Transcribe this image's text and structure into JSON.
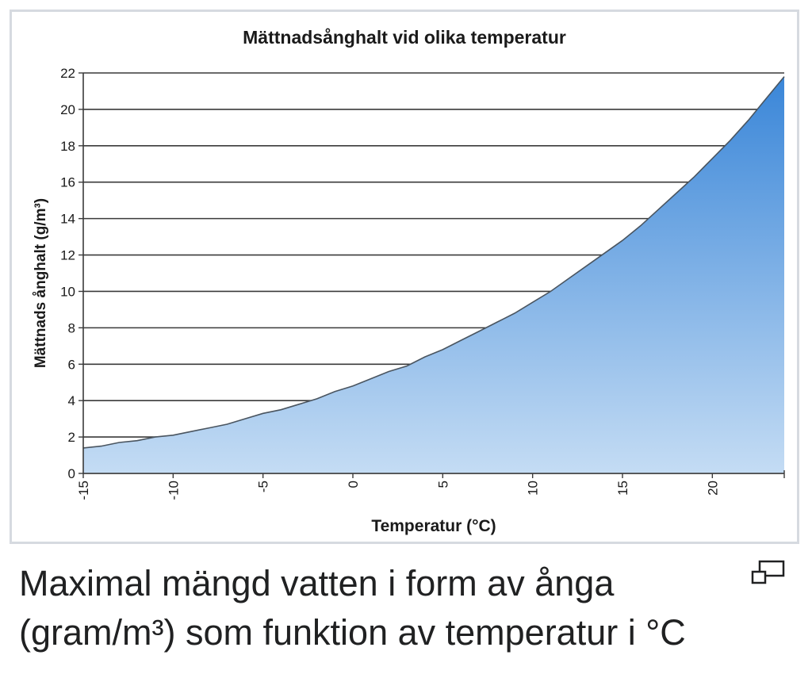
{
  "chart_data": {
    "type": "area",
    "title": "Mättnadsånghalt vid olika temperatur",
    "xlabel": "Temperatur (°C)",
    "ylabel": "Mättnads ånghalt (g/m³)",
    "xlim": [
      -15,
      24
    ],
    "ylim": [
      0,
      22
    ],
    "x_ticks": [
      "-15",
      "-10",
      "-5",
      "0",
      "5",
      "10",
      "15",
      "20"
    ],
    "y_ticks": [
      "0",
      "2",
      "4",
      "6",
      "8",
      "10",
      "12",
      "14",
      "16",
      "18",
      "20",
      "22"
    ],
    "grid": true,
    "fill_colors": {
      "top": "#3a86d8",
      "bottom": "#c4dcf4"
    },
    "line_color": "#4a5560",
    "series": [
      {
        "x": [
          -15,
          -14,
          -13,
          -12,
          -11,
          -10,
          -9,
          -8,
          -7,
          -6,
          -5,
          -4,
          -3,
          -2,
          -1,
          0,
          1,
          2,
          3,
          4,
          5,
          6,
          7,
          8,
          9,
          10,
          11,
          12,
          13,
          14,
          15,
          16,
          17,
          18,
          19,
          20,
          21,
          22,
          23,
          24
        ],
        "values": [
          1.4,
          1.5,
          1.7,
          1.8,
          2.0,
          2.1,
          2.3,
          2.5,
          2.7,
          3.0,
          3.3,
          3.5,
          3.8,
          4.1,
          4.5,
          4.8,
          5.2,
          5.6,
          5.9,
          6.4,
          6.8,
          7.3,
          7.8,
          8.3,
          8.8,
          9.4,
          10.0,
          10.7,
          11.4,
          12.1,
          12.8,
          13.6,
          14.5,
          15.4,
          16.3,
          17.3,
          18.3,
          19.4,
          20.6,
          21.8
        ]
      }
    ]
  },
  "caption": {
    "line1": "Maximal mängd vatten i form av ånga",
    "line2": "(gram/m³) som funktion av temperatur i °C"
  },
  "icons": {
    "enlarge": "enlarge-icon"
  }
}
